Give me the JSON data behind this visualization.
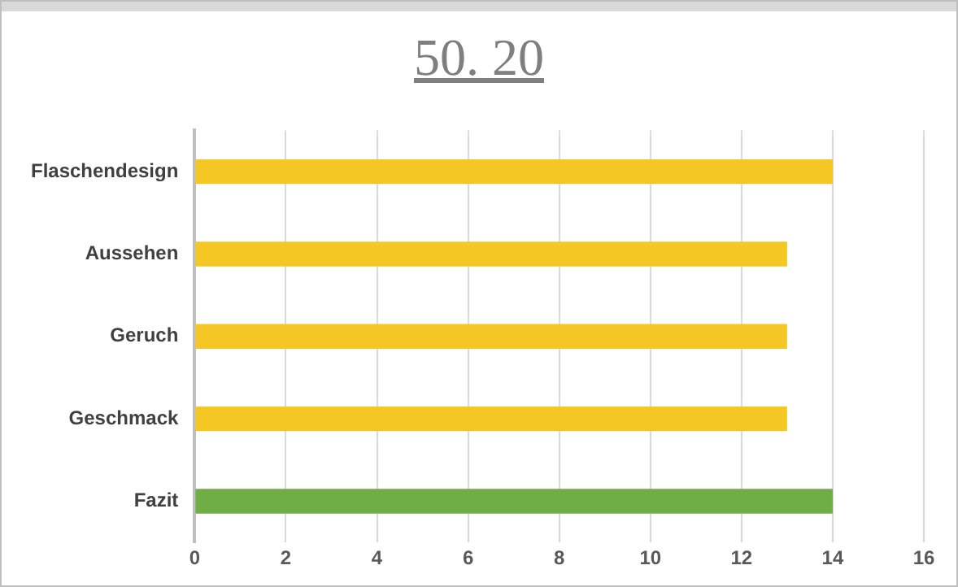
{
  "chart_data": {
    "type": "bar",
    "orientation": "horizontal",
    "title": "50. 20",
    "categories": [
      "Flaschendesign",
      "Aussehen",
      "Geruch",
      "Geschmack",
      "Fazit"
    ],
    "values": [
      14,
      13,
      13,
      13,
      14
    ],
    "colors": [
      "#f5c724",
      "#f5c724",
      "#f5c724",
      "#f5c724",
      "#70ad47"
    ],
    "xlim": [
      0,
      16
    ],
    "xticks": [
      0,
      2,
      4,
      6,
      8,
      10,
      12,
      14,
      16
    ],
    "grid": "x",
    "legend": false
  }
}
